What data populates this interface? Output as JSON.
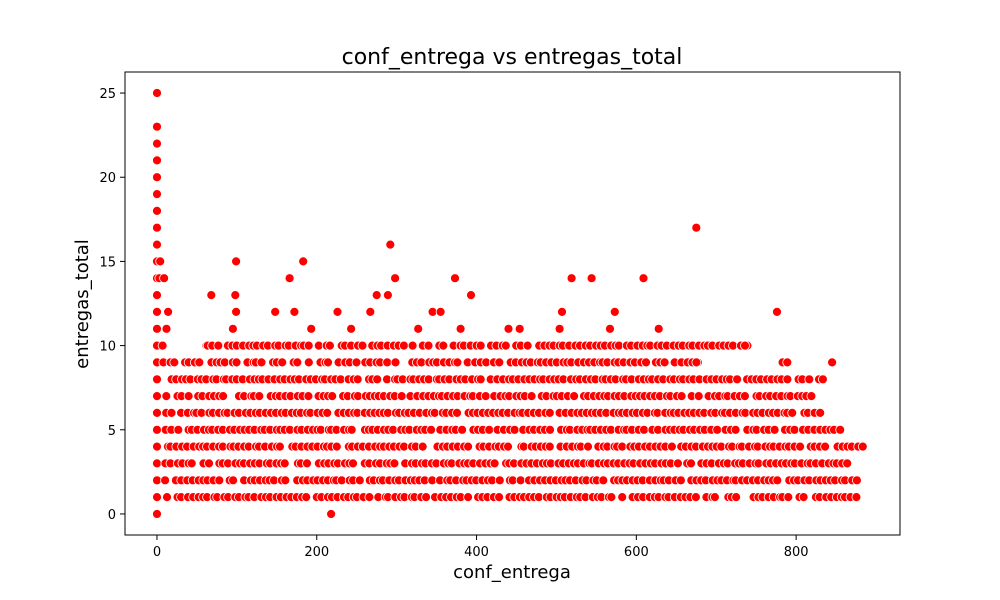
{
  "chart_data": {
    "type": "scatter",
    "title": "conf_entrega vs entregas_total",
    "xlabel": "conf_entrega",
    "ylabel": "entregas_total",
    "xlim": [
      -40,
      930
    ],
    "ylim": [
      -1.25,
      26.25
    ],
    "x_ticks": [
      0,
      200,
      400,
      600,
      800
    ],
    "y_ticks": [
      0,
      5,
      10,
      15,
      20,
      25
    ],
    "grid": false,
    "legend": "none",
    "marker_color": "#ff0000",
    "marker_edge_color": "#ffffff",
    "points": [
      [
        0,
        0
      ],
      [
        0,
        1
      ],
      [
        0,
        2
      ],
      [
        0,
        3
      ],
      [
        0,
        4
      ],
      [
        0,
        5
      ],
      [
        0,
        6
      ],
      [
        0,
        7
      ],
      [
        0,
        8
      ],
      [
        0,
        9
      ],
      [
        0,
        10
      ],
      [
        0,
        11
      ],
      [
        0,
        12
      ],
      [
        0,
        13
      ],
      [
        0,
        14
      ],
      [
        0,
        15
      ],
      [
        0,
        16
      ],
      [
        0,
        17
      ],
      [
        0,
        18
      ],
      [
        0,
        19
      ],
      [
        0,
        20
      ],
      [
        0,
        21
      ],
      [
        0,
        22
      ],
      [
        0,
        23
      ],
      [
        0,
        25
      ],
      [
        3,
        14
      ],
      [
        4,
        15
      ],
      [
        7,
        10
      ],
      [
        8,
        9
      ],
      [
        9,
        14
      ],
      [
        12,
        11
      ],
      [
        14,
        12
      ],
      [
        218,
        0
      ],
      [
        17,
        9
      ],
      [
        62,
        10
      ],
      [
        68,
        13
      ],
      [
        95,
        11
      ],
      [
        99,
        15
      ],
      [
        98,
        13
      ],
      [
        99,
        12
      ],
      [
        148,
        12
      ],
      [
        166,
        14
      ],
      [
        172,
        12
      ],
      [
        183,
        15
      ],
      [
        193,
        11
      ],
      [
        226,
        12
      ],
      [
        243,
        11
      ],
      [
        267,
        12
      ],
      [
        275,
        13
      ],
      [
        292,
        16
      ],
      [
        289,
        13
      ],
      [
        298,
        14
      ],
      [
        327,
        11
      ],
      [
        345,
        12
      ],
      [
        355,
        12
      ],
      [
        373,
        14
      ],
      [
        380,
        11
      ],
      [
        393,
        13
      ],
      [
        440,
        11
      ],
      [
        454,
        11
      ],
      [
        504,
        11
      ],
      [
        507,
        12
      ],
      [
        519,
        14
      ],
      [
        544,
        14
      ],
      [
        567,
        11
      ],
      [
        573,
        12
      ],
      [
        609,
        14
      ],
      [
        628,
        11
      ],
      [
        675,
        17
      ],
      [
        677,
        9
      ],
      [
        739,
        10
      ],
      [
        776,
        12
      ],
      [
        783,
        9
      ],
      [
        789,
        9
      ],
      [
        845,
        9
      ]
    ],
    "density_rows": [
      {
        "y": 1,
        "x_start": 10,
        "x_end": 880
      },
      {
        "y": 2,
        "x_start": 10,
        "x_end": 880
      },
      {
        "y": 3,
        "x_start": 10,
        "x_end": 870
      },
      {
        "y": 4,
        "x_start": 10,
        "x_end": 888
      },
      {
        "y": 5,
        "x_start": 10,
        "x_end": 860
      },
      {
        "y": 6,
        "x_start": 10,
        "x_end": 840
      },
      {
        "y": 7,
        "x_start": 10,
        "x_end": 825
      },
      {
        "y": 8,
        "x_start": 15,
        "x_end": 840
      },
      {
        "y": 9,
        "x_start": 20,
        "x_end": 680
      },
      {
        "y": 10,
        "x_start": 60,
        "x_end": 740
      }
    ]
  }
}
